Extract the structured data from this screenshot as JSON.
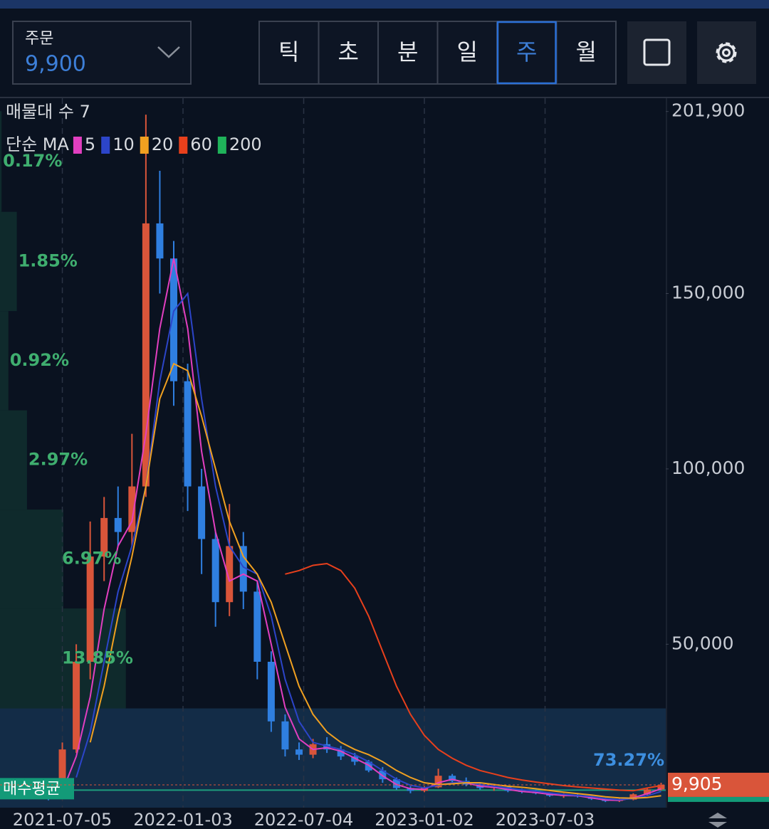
{
  "header": {
    "order_label": "주문",
    "order_value": "9,900",
    "tabs": [
      "틱",
      "초",
      "분",
      "일",
      "주",
      "월"
    ],
    "selected_tab": 4
  },
  "chart_data": {
    "type": "candlestick",
    "title": "매물대 수 7",
    "legend_title": "단순 MA",
    "x": [
      "2021-06-14",
      "2021-07-05",
      "2021-07-26",
      "2021-08-16",
      "2021-09-06",
      "2021-09-27",
      "2021-10-18",
      "2021-11-08",
      "2021-11-29",
      "2021-12-20",
      "2022-01-10",
      "2022-01-31",
      "2022-02-21",
      "2022-03-14",
      "2022-04-04",
      "2022-04-25",
      "2022-05-16",
      "2022-06-06",
      "2022-06-27",
      "2022-07-18",
      "2022-08-08",
      "2022-08-29",
      "2022-09-19",
      "2022-10-10",
      "2022-10-31",
      "2022-11-21",
      "2022-12-12",
      "2023-01-02",
      "2023-01-23",
      "2023-02-13",
      "2023-03-06",
      "2023-03-27",
      "2023-04-17",
      "2023-05-08",
      "2023-05-29",
      "2023-06-19",
      "2023-07-10",
      "2023-07-31",
      "2023-08-21",
      "2023-09-11",
      "2023-10-02",
      "2023-10-23",
      "2023-11-13",
      "2023-12-04",
      "2023-12-25"
    ],
    "open": [
      7000,
      6500,
      20000,
      45000,
      75000,
      86000,
      82000,
      95000,
      170000,
      160000,
      125000,
      95000,
      80000,
      62000,
      78000,
      65000,
      45000,
      28000,
      20000,
      18500,
      21500,
      20000,
      18000,
      16500,
      14000,
      11500,
      9000,
      8200,
      9200,
      12500,
      11000,
      10000,
      9000,
      9300,
      8200,
      7900,
      7500,
      6800,
      7000,
      6600,
      5900,
      5300,
      5700,
      7200,
      8600
    ],
    "high": [
      8000,
      22000,
      50000,
      85000,
      92000,
      95000,
      110000,
      201000,
      185000,
      165000,
      130000,
      100000,
      82000,
      90000,
      82000,
      68000,
      48000,
      30000,
      22000,
      23000,
      23500,
      21000,
      19000,
      17000,
      15000,
      12000,
      9500,
      9500,
      14500,
      13000,
      12000,
      10500,
      10000,
      9500,
      8800,
      8500,
      7800,
      7500,
      7600,
      7000,
      6200,
      6000,
      7500,
      9000,
      10500
    ],
    "low": [
      5500,
      6000,
      19000,
      40000,
      68000,
      78000,
      78000,
      92000,
      150000,
      118000,
      88000,
      70000,
      55000,
      58000,
      60000,
      40000,
      25000,
      18000,
      17000,
      17500,
      19000,
      17000,
      15500,
      13500,
      10500,
      8500,
      7500,
      7800,
      9000,
      10500,
      9500,
      8500,
      8200,
      7800,
      7500,
      7200,
      6500,
      6200,
      6300,
      5600,
      5000,
      5000,
      5500,
      7000,
      8300
    ],
    "close": [
      6500,
      20000,
      45000,
      75000,
      86000,
      82000,
      95000,
      170000,
      160000,
      125000,
      95000,
      80000,
      62000,
      78000,
      65000,
      45000,
      28000,
      20000,
      18500,
      21500,
      20000,
      18000,
      16500,
      14000,
      11500,
      9000,
      8200,
      9200,
      12500,
      11000,
      10000,
      9000,
      9300,
      8200,
      7900,
      7500,
      6800,
      7000,
      6600,
      5900,
      5300,
      5700,
      7200,
      8600,
      9900
    ],
    "up_color": "#d9553a",
    "down_color": "#2f7fe0",
    "series": [
      {
        "name": "5",
        "color": "#e23fc0",
        "values": [
          null,
          8000,
          18000,
          35000,
          60000,
          78000,
          85000,
          110000,
          140000,
          160000,
          140000,
          105000,
          82000,
          68000,
          70000,
          68000,
          50000,
          32000,
          23000,
          20000,
          20500,
          19500,
          17500,
          15500,
          12500,
          10000,
          8800,
          8600,
          10500,
          11500,
          10500,
          9500,
          9200,
          8600,
          8000,
          7700,
          7200,
          6900,
          6800,
          6200,
          5600,
          5500,
          6200,
          7400,
          8800
        ]
      },
      {
        "name": "10",
        "color": "#2c45c9",
        "values": [
          null,
          null,
          12000,
          25000,
          45000,
          65000,
          78000,
          95000,
          125000,
          145000,
          150000,
          120000,
          95000,
          78000,
          72000,
          70000,
          58000,
          40000,
          28000,
          22000,
          21000,
          20000,
          18500,
          16500,
          14000,
          11500,
          9800,
          9000,
          9800,
          10500,
          10700,
          10000,
          9500,
          9000,
          8500,
          8100,
          7600,
          7200,
          6900,
          6600,
          6000,
          5700,
          6000,
          6800,
          8000
        ]
      },
      {
        "name": "20",
        "color": "#f0a020",
        "values": [
          null,
          null,
          null,
          22000,
          38000,
          58000,
          75000,
          95000,
          120000,
          130000,
          128000,
          115000,
          100000,
          85000,
          75000,
          70000,
          62000,
          50000,
          38000,
          30000,
          25000,
          22000,
          20000,
          18500,
          16500,
          14000,
          12000,
          10500,
          10000,
          10200,
          10500,
          10500,
          10000,
          9500,
          9200,
          8800,
          8300,
          7800,
          7400,
          7000,
          6500,
          6200,
          6100,
          6300,
          6800
        ]
      },
      {
        "name": "60",
        "color": "#e8401c",
        "values": [
          null,
          null,
          null,
          null,
          null,
          null,
          null,
          null,
          null,
          null,
          null,
          null,
          null,
          null,
          null,
          null,
          null,
          70000,
          71000,
          72500,
          73000,
          71000,
          66000,
          58000,
          48000,
          38000,
          30000,
          24000,
          20000,
          17500,
          15500,
          14000,
          13000,
          12000,
          11300,
          10700,
          10200,
          9700,
          9300,
          9000,
          8700,
          8400,
          8200,
          9000,
          9700
        ]
      },
      {
        "name": "200",
        "color": "#1fb35a",
        "values": [
          null,
          null,
          null,
          null,
          null,
          null,
          null,
          null,
          null,
          null,
          null,
          null,
          null,
          null,
          null,
          null,
          null,
          null,
          null,
          null,
          null,
          null,
          null,
          null,
          null,
          null,
          null,
          null,
          null,
          null,
          null,
          null,
          null,
          null,
          null,
          null,
          null,
          null,
          null,
          null,
          null,
          null,
          null,
          null,
          null
        ]
      }
    ],
    "profile": {
      "bins": [
        3400,
        31700,
        60200,
        88400,
        116700,
        145000,
        173300,
        202000
      ],
      "values": [
        73.27,
        13.85,
        6.97,
        2.97,
        0.92,
        1.85,
        0.17
      ],
      "value_labels": [
        "73.27%",
        "13.85%",
        "6.97%",
        "2.97%",
        "0.92%",
        "1.85%",
        "0.17%"
      ]
    },
    "avg_price": 8400,
    "avg_label": "매수평균",
    "last_price": 9905,
    "last_price_label": "9,905",
    "xlim": [
      "2021-04-02",
      "2024-01-01"
    ],
    "xticks": [
      "2021-07-05",
      "2022-01-03",
      "2022-07-04",
      "2023-01-02",
      "2023-07-03"
    ],
    "ylim": [
      3400,
      205700
    ],
    "yticks": [
      {
        "value": 50000,
        "label": "50,000"
      },
      {
        "value": 100000,
        "label": "100,000"
      },
      {
        "value": 150000,
        "label": "150,000"
      },
      {
        "value": 201900,
        "label": "201,900"
      }
    ]
  }
}
